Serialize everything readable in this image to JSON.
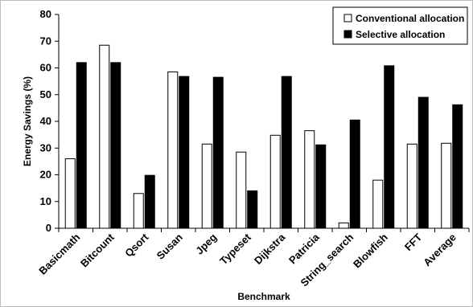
{
  "chart_data": {
    "type": "bar",
    "xlabel": "Benchmark",
    "ylabel": "Energy Savings (%)",
    "ylim": [
      0,
      80
    ],
    "yticks": [
      0,
      10,
      20,
      30,
      40,
      50,
      60,
      70,
      80
    ],
    "grid": false,
    "legend_position": "top-right",
    "categories": [
      "Basicmath",
      "Bitcount",
      "Qsort",
      "Susan",
      "Jpeg",
      "Typeset",
      "Dijkstra",
      "Patricia",
      "String_search",
      "Blowfish",
      "FFT",
      "Average"
    ],
    "series": [
      {
        "name": "Conventional allocation",
        "color": "#ffffff",
        "values": [
          26,
          68.5,
          13,
          58.5,
          31.5,
          28.5,
          34.8,
          36.5,
          2,
          18,
          31.5,
          31.8
        ]
      },
      {
        "name": "Selective allocation",
        "color": "#000000",
        "values": [
          62,
          62,
          19.8,
          56.8,
          56.5,
          14,
          56.8,
          31.2,
          40.5,
          60.8,
          49,
          46.2
        ]
      }
    ]
  }
}
